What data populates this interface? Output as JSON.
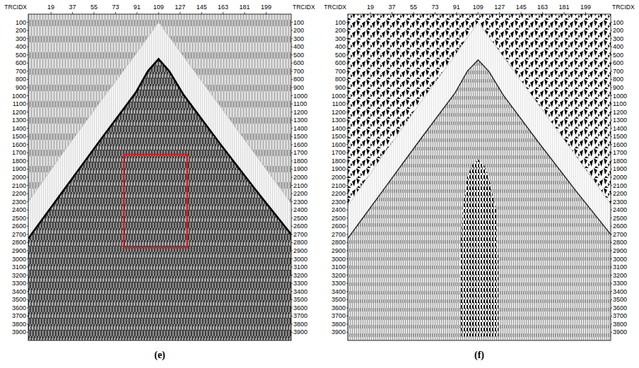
{
  "chart_data": [
    {
      "type": "seismic",
      "title": "(e)",
      "x_label": "TRCIDX",
      "xlim": [
        0,
        220
      ],
      "xticks": [
        19,
        37,
        55,
        73,
        91,
        109,
        127,
        145,
        163,
        181,
        199
      ],
      "ylim": [
        0,
        4000
      ],
      "yticks": [
        100,
        200,
        300,
        400,
        500,
        600,
        700,
        800,
        900,
        1000,
        1100,
        1200,
        1300,
        1400,
        1500,
        1600,
        1700,
        1800,
        1900,
        2000,
        2100,
        2200,
        2300,
        2400,
        2500,
        2600,
        2700,
        2800,
        2900,
        3000,
        3100,
        3200,
        3300,
        3400,
        3500,
        3600,
        3700,
        3800,
        3900
      ],
      "mute_boundary": {
        "trace": [
          0,
          30,
          60,
          90,
          109,
          130,
          160,
          190,
          220
        ],
        "time": [
          2300,
          1680,
          1080,
          490,
          100,
          520,
          1120,
          1720,
          2320
        ]
      },
      "first_break": {
        "trace": [
          0,
          30,
          60,
          90,
          100,
          109,
          118,
          130,
          160,
          190,
          220
        ],
        "time": [
          2750,
          2150,
          1550,
          960,
          700,
          550,
          700,
          990,
          1580,
          2150,
          2700
        ]
      },
      "box": {
        "trace": [
          80,
          133
        ],
        "time": [
          1720,
          2860
        ],
        "color": "#e8141c"
      }
    },
    {
      "type": "seismic",
      "title": "(f)",
      "x_label": "TRCIDX",
      "xlim": [
        0,
        220
      ],
      "xticks": [
        19,
        37,
        55,
        73,
        91,
        109,
        127,
        145,
        163,
        181,
        199
      ],
      "ylim": [
        0,
        4000
      ],
      "yticks": [
        100,
        200,
        300,
        400,
        500,
        600,
        700,
        800,
        900,
        1000,
        1100,
        1200,
        1300,
        1400,
        1500,
        1600,
        1700,
        1800,
        1900,
        2000,
        2100,
        2200,
        2300,
        2400,
        2500,
        2600,
        2700,
        2800,
        2900,
        3000,
        3100,
        3200,
        3300,
        3400,
        3500,
        3600,
        3700,
        3800,
        3900
      ],
      "mute_boundary": {
        "trace": [
          0,
          30,
          60,
          90,
          109,
          130,
          160,
          190,
          220
        ],
        "time": [
          2350,
          1720,
          1100,
          500,
          100,
          520,
          1120,
          1720,
          2330
        ]
      },
      "first_break": {
        "trace": [
          0,
          30,
          60,
          90,
          100,
          109,
          118,
          130,
          160,
          190,
          220
        ],
        "time": [
          2750,
          2150,
          1550,
          960,
          700,
          560,
          700,
          990,
          1580,
          2150,
          2700
        ]
      },
      "dark_zone": {
        "trace": [
          96,
          100,
          104,
          109,
          114,
          118,
          124,
          126,
          126,
          95,
          94
        ],
        "time": [
          2400,
          2000,
          1850,
          1780,
          1850,
          2000,
          2400,
          3000,
          3950,
          3950,
          3000
        ]
      }
    }
  ]
}
